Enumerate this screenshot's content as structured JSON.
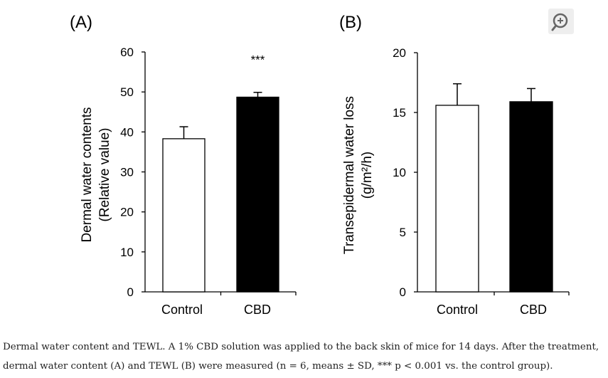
{
  "chart_data": [
    {
      "type": "bar",
      "panel_label": "(A)",
      "categories": [
        "Control",
        "CBD"
      ],
      "values": [
        38.3,
        48.7
      ],
      "errors": [
        3.0,
        1.2
      ],
      "colors": [
        "#ffffff",
        "#000000"
      ],
      "significance": [
        "",
        "***"
      ],
      "ylabel": [
        "Dermal water contents",
        "(Relative value)"
      ],
      "ylim": [
        0,
        60
      ],
      "yticks": [
        0,
        10,
        20,
        30,
        40,
        50,
        60
      ],
      "grid": false
    },
    {
      "type": "bar",
      "panel_label": "(B)",
      "categories": [
        "Control",
        "CBD"
      ],
      "values": [
        15.6,
        15.9
      ],
      "errors": [
        1.8,
        1.1
      ],
      "colors": [
        "#ffffff",
        "#000000"
      ],
      "significance": [
        "",
        ""
      ],
      "ylabel": [
        "Transepidermal water loss",
        "(g/m²/h)"
      ],
      "ylim": [
        0,
        20
      ],
      "yticks": [
        0,
        5,
        10,
        15,
        20
      ],
      "grid": false
    }
  ],
  "caption": {
    "line1": "Dermal water content and TEWL. A 1% CBD solution was applied to the back skin of mice for 14 days. After the treatment,",
    "line2": "dermal water content (A) and TEWL (B) were measured (n = 6, means ± SD, *** p < 0.001 vs. the control group)."
  },
  "toolbar": {
    "zoom_icon": "zoom-in-icon"
  }
}
